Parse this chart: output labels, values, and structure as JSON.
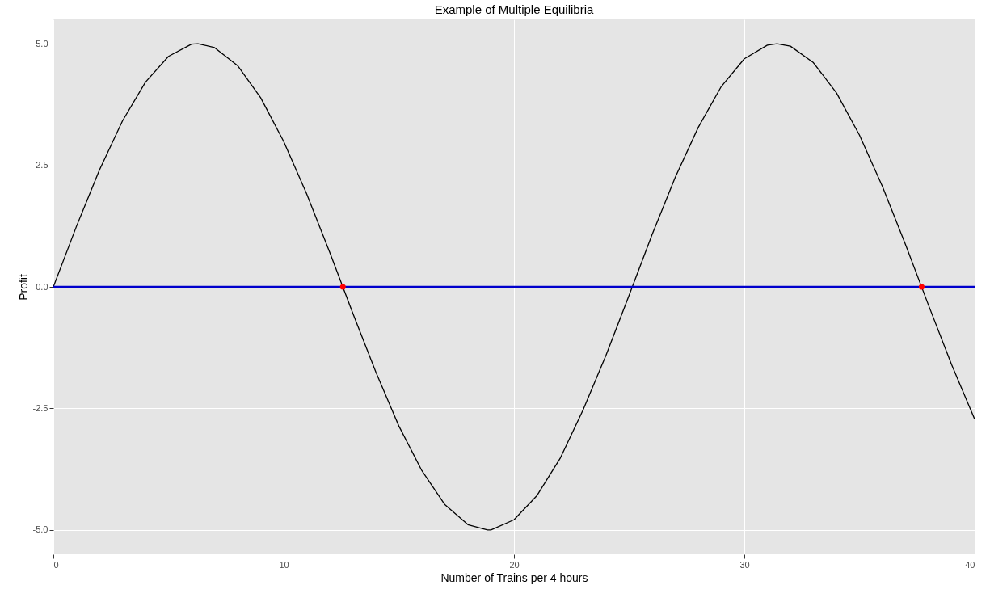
{
  "chart_data": {
    "type": "line",
    "title": "Example of Multiple Equilibria",
    "xlabel": "Number of Trains per 4 hours",
    "ylabel": "Profit",
    "xlim": [
      0,
      40
    ],
    "ylim": [
      -5.5,
      5.5
    ],
    "xticks": [
      0,
      10,
      20,
      30,
      40
    ],
    "yticks": [
      {
        "value": -5,
        "label": "-5.0"
      },
      {
        "value": -2.5,
        "label": "-2.5"
      },
      {
        "value": 0,
        "label": "0.0"
      },
      {
        "value": 2.5,
        "label": "2.5"
      },
      {
        "value": 5,
        "label": "5.0"
      }
    ],
    "grid": true,
    "line_style": "solid",
    "series": [
      {
        "color": "#000000",
        "marker": "none",
        "x": [
          0,
          1,
          2,
          3,
          4,
          5,
          6,
          6.28,
          7,
          8,
          9,
          10,
          11,
          12,
          13,
          14,
          15,
          16,
          17,
          18,
          18.85,
          19,
          20,
          21,
          22,
          23,
          24,
          25,
          26,
          27,
          28,
          29,
          30,
          31,
          31.42,
          32,
          33,
          34,
          35,
          36,
          37,
          38,
          39,
          40
        ],
        "values": [
          0,
          1.24,
          2.4,
          3.41,
          4.21,
          4.74,
          4.99,
          5,
          4.92,
          4.55,
          3.89,
          2.99,
          1.91,
          0.71,
          -0.54,
          -1.75,
          -2.86,
          -3.78,
          -4.48,
          -4.89,
          -5,
          -5,
          -4.79,
          -4.29,
          -3.53,
          -2.53,
          -1.4,
          -0.17,
          1.08,
          2.25,
          3.28,
          4.12,
          4.69,
          4.97,
          5,
          4.95,
          4.61,
          3.99,
          3.12,
          2.06,
          0.87,
          -0.38,
          -1.6,
          -2.72
        ]
      },
      {
        "type": "scatter",
        "color": "#ff0000",
        "marker": "circle",
        "x": [
          12.57,
          37.7
        ],
        "values": [
          0,
          0
        ]
      }
    ],
    "ref_lines": [
      {
        "axis": "y",
        "value": 0,
        "color": "#0000cc",
        "line_style": "solid"
      }
    ]
  }
}
